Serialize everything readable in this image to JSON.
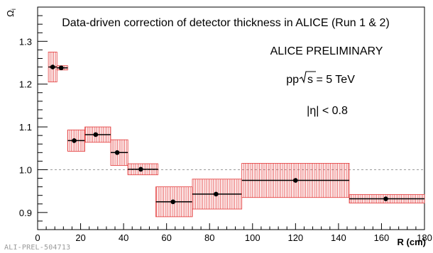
{
  "chart_data": {
    "type": "scatter",
    "title": "Data-driven correction of detector thickness in ALICE (Run 1 & 2)",
    "annotations": {
      "preliminary": "ALICE PRELIMINARY",
      "system_prefix": "pp ",
      "energy_suffix": "s = 5 TeV",
      "eta_cut": "|η| < 0.8"
    },
    "xlabel": "R (cm)",
    "ylabel": "Ω",
    "ylabel_sub": "i",
    "xlim": [
      0,
      180
    ],
    "ylim": [
      0.86,
      1.38
    ],
    "x_ticks": [
      0,
      20,
      40,
      60,
      80,
      100,
      120,
      140,
      160,
      180
    ],
    "y_ticks": [
      0.9,
      1.0,
      1.1,
      1.2,
      1.3
    ],
    "y_tick_labels": [
      "0.9",
      "1.0",
      "1.1",
      "1.2",
      "1.3"
    ],
    "reference_line": 1.0,
    "marker_color": "#000000",
    "syst_band_color": "#e33a3a",
    "reference_line_color": "#9a9a9a",
    "points": [
      {
        "x": 7,
        "x_low": 5,
        "x_high": 9,
        "y": 1.24,
        "syst": 0.035
      },
      {
        "x": 11,
        "x_low": 9,
        "x_high": 14,
        "y": 1.238,
        "syst": 0.005
      },
      {
        "x": 17,
        "x_low": 14,
        "x_high": 22,
        "y": 1.068,
        "syst": 0.025
      },
      {
        "x": 27,
        "x_low": 22,
        "x_high": 34,
        "y": 1.082,
        "syst": 0.018
      },
      {
        "x": 37,
        "x_low": 34,
        "x_high": 42,
        "y": 1.04,
        "syst": 0.03
      },
      {
        "x": 48,
        "x_low": 42,
        "x_high": 56,
        "y": 1.001,
        "syst": 0.013
      },
      {
        "x": 63,
        "x_low": 55,
        "x_high": 72,
        "y": 0.925,
        "syst": 0.035
      },
      {
        "x": 83,
        "x_low": 72,
        "x_high": 95,
        "y": 0.943,
        "syst": 0.035
      },
      {
        "x": 120,
        "x_low": 95,
        "x_high": 145,
        "y": 0.975,
        "syst": 0.04
      },
      {
        "x": 162,
        "x_low": 145,
        "x_high": 180,
        "y": 0.932,
        "syst": 0.01
      }
    ]
  },
  "watermark": "ALI-PREL-504713"
}
